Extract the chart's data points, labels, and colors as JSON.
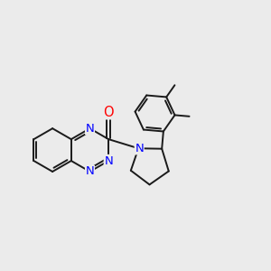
{
  "bg_color": "#ebebeb",
  "bond_color": "#1a1a1a",
  "n_color": "#0000ff",
  "o_color": "#ff0000",
  "bond_width": 1.4,
  "font_size": 9.5,
  "fig_width": 3.0,
  "fig_height": 3.0,
  "dpi": 100,
  "xlim": [
    -3.0,
    3.5
  ],
  "ylim": [
    -2.5,
    2.8
  ]
}
